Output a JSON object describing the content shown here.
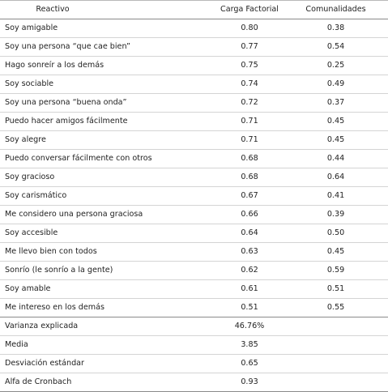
{
  "table": {
    "headers": [
      "Reactivo",
      "Carga Factorial",
      "Comunalidades"
    ],
    "rows": [
      {
        "item": "Soy amigable",
        "carga": "0.80",
        "comunalidad": "0.38"
      },
      {
        "item": "Soy una persona “que cae bien”",
        "carga": "0.77",
        "comunalidad": "0.54"
      },
      {
        "item": "Hago sonreír a los demás",
        "carga": "0.75",
        "comunalidad": "0.25"
      },
      {
        "item": "Soy sociable",
        "carga": "0.74",
        "comunalidad": "0.49"
      },
      {
        "item": "Soy una persona “buena onda”",
        "carga": "0.72",
        "comunalidad": "0.37"
      },
      {
        "item": "Puedo hacer amigos fácilmente",
        "carga": "0.71",
        "comunalidad": "0.45"
      },
      {
        "item": "Soy alegre",
        "carga": "0.71",
        "comunalidad": "0.45"
      },
      {
        "item": "Puedo conversar fácilmente con otros",
        "carga": "0.68",
        "comunalidad": "0.44"
      },
      {
        "item": "Soy gracioso",
        "carga": "0.68",
        "comunalidad": "0.64"
      },
      {
        "item": "Soy carismático",
        "carga": "0.67",
        "comunalidad": "0.41"
      },
      {
        "item": "Me considero una persona graciosa",
        "carga": "0.66",
        "comunalidad": "0.39"
      },
      {
        "item": "Soy accesible",
        "carga": "0.64",
        "comunalidad": "0.50"
      },
      {
        "item": "Me llevo bien con todos",
        "carga": "0.63",
        "comunalidad": "0.45"
      },
      {
        "item": "Sonrío (le sonrío a la gente)",
        "carga": "0.62",
        "comunalidad": "0.59"
      },
      {
        "item": "Soy amable",
        "carga": "0.61",
        "comunalidad": "0.51"
      },
      {
        "item": "Me intereso en los demás",
        "carga": "0.51",
        "comunalidad": "0.55"
      }
    ],
    "summary": [
      {
        "label": "Varianza explicada",
        "value": "46.76%"
      },
      {
        "label": "Media",
        "value": "3.85"
      },
      {
        "label": "Desviación estándar",
        "value": "0.65"
      },
      {
        "label": "Alfa de Cronbach",
        "value": "0.93"
      }
    ]
  }
}
